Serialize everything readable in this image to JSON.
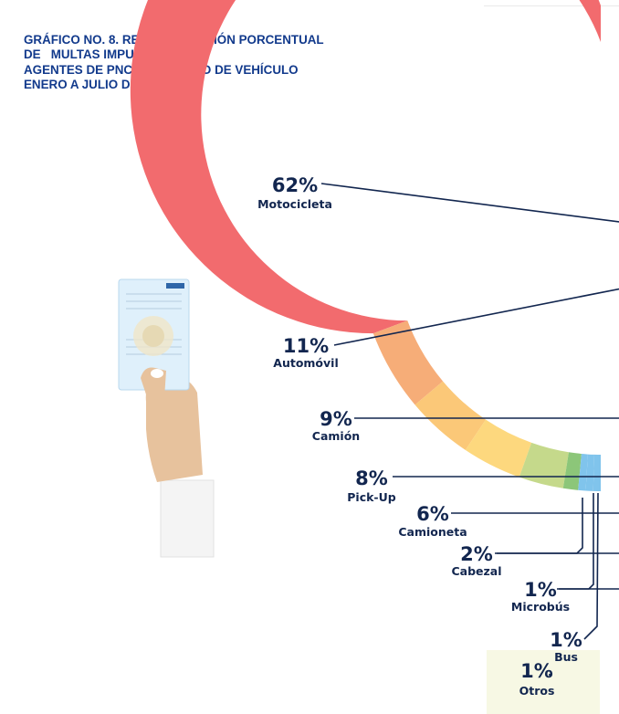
{
  "title_lines": [
    "GRÁFICO NO. 8. REPRESENTACIÓN PORCENTUAL",
    "DE   MULTAS IMPUESTAS POR",
    "AGENTES DE PNC SEGÚN TIPO DE VEHÍCULO",
    "ENERO A JULIO DE 2026."
  ],
  "illustration": {
    "icon": "hand-holding-id-card-icon"
  },
  "chart_data": {
    "type": "pie",
    "variant": "half-donut",
    "title": "GRÁFICO NO. 8. REPRESENTACIÓN PORCENTUAL DE MULTAS IMPUESTAS POR AGENTES DE PNC SEGÚN TIPO DE VEHÍCULO ENERO A JULIO DE 2026.",
    "unit": "%",
    "categories": [
      "Motocicleta",
      "Automóvil",
      "Camión",
      "Pick-Up",
      "Camioneta",
      "Cabezal",
      "Microbús",
      "Bus",
      "Otros"
    ],
    "values": [
      62,
      11,
      9,
      8,
      6,
      2,
      1,
      1,
      1
    ],
    "labels": [
      "62%",
      "11%",
      "9%",
      "8%",
      "6%",
      "2%",
      "1%",
      "1%",
      "1%"
    ],
    "colors": [
      "#f26b6e",
      "#f6ad78",
      "#fbc878",
      "#fdd87e",
      "#c5d98b",
      "#8cc679",
      "#80c4ec",
      "#80c4ec",
      "#80c4ec"
    ],
    "legend": "none"
  }
}
